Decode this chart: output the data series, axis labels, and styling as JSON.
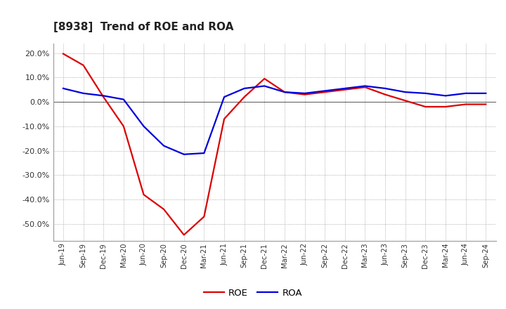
{
  "title": "[8938]  Trend of ROE and ROA",
  "title_fontsize": 11,
  "ylim": [
    -0.57,
    0.24
  ],
  "yticks": [
    -0.5,
    -0.4,
    -0.3,
    -0.2,
    -0.1,
    0.0,
    0.1,
    0.2
  ],
  "background_color": "#ffffff",
  "grid_color": "#999999",
  "roe_color": "#dd0000",
  "roa_color": "#0000dd",
  "line_width": 1.6,
  "dates": [
    "Jun-19",
    "Sep-19",
    "Dec-19",
    "Mar-20",
    "Jun-20",
    "Sep-20",
    "Dec-20",
    "Mar-21",
    "Jun-21",
    "Sep-21",
    "Dec-21",
    "Mar-22",
    "Jun-22",
    "Sep-22",
    "Dec-22",
    "Mar-23",
    "Jun-23",
    "Sep-23",
    "Dec-23",
    "Mar-24",
    "Jun-24",
    "Sep-24"
  ],
  "roe": [
    0.197,
    0.15,
    0.02,
    -0.1,
    -0.38,
    -0.44,
    -0.545,
    -0.47,
    -0.07,
    0.02,
    0.095,
    0.04,
    0.03,
    0.04,
    0.05,
    0.06,
    0.03,
    0.005,
    -0.02,
    -0.02,
    -0.01,
    -0.01
  ],
  "roa": [
    0.055,
    0.035,
    0.025,
    0.01,
    -0.1,
    -0.18,
    -0.215,
    -0.21,
    0.02,
    0.055,
    0.065,
    0.04,
    0.035,
    0.045,
    0.055,
    0.065,
    0.055,
    0.04,
    0.035,
    0.025,
    0.035,
    0.035
  ],
  "legend_labels": [
    "ROE",
    "ROA"
  ]
}
